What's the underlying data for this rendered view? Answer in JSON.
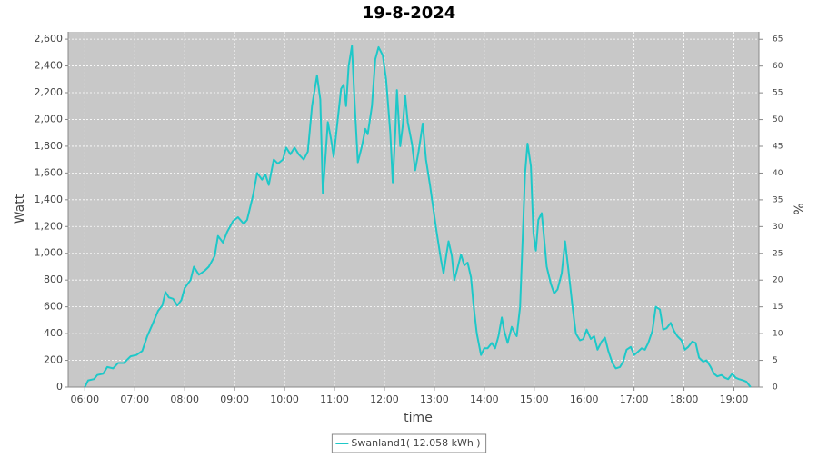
{
  "chart_data": {
    "type": "line",
    "title": "19-8-2024",
    "xlabel": "time",
    "ylabel": "Watt",
    "y2label": "%",
    "x": [
      360,
      364,
      371,
      375,
      382,
      387,
      394,
      400,
      407,
      415,
      422,
      429,
      435,
      442,
      448,
      453,
      457,
      461,
      466,
      471,
      476,
      480,
      487,
      491,
      497,
      504,
      509,
      516,
      520,
      526,
      531,
      538,
      544,
      551,
      555,
      562,
      567,
      573,
      577,
      581,
      587,
      592,
      598,
      602,
      607,
      612,
      617,
      623,
      628,
      633,
      639,
      643,
      646,
      649,
      652,
      656,
      659,
      663,
      668,
      671,
      674,
      677,
      681,
      684,
      688,
      693,
      697,
      700,
      705,
      709,
      713,
      718,
      722,
      727,
      730,
      733,
      735,
      739,
      742,
      745,
      748,
      753,
      757,
      761,
      766,
      770,
      775,
      779,
      783,
      788,
      791,
      794,
      797,
      801,
      804,
      807,
      812,
      816,
      820,
      824,
      827,
      831,
      836,
      840,
      844,
      849,
      853,
      857,
      861,
      864,
      868,
      873,
      876,
      879,
      883,
      886,
      889,
      892,
      896,
      899,
      902,
      905,
      909,
      912,
      915,
      920,
      924,
      928,
      933,
      937,
      941,
      946,
      950,
      955,
      959,
      963,
      968,
      972,
      976,
      981,
      985,
      989,
      994,
      998,
      1003,
      1007,
      1011,
      1016,
      1020,
      1024,
      1029,
      1033,
      1037,
      1042,
      1046,
      1051,
      1055,
      1059,
      1064,
      1068,
      1072,
      1077,
      1081,
      1085,
      1090,
      1094,
      1098,
      1103,
      1107,
      1112,
      1116,
      1120,
      1125,
      1129,
      1133,
      1138,
      1142,
      1146,
      1151,
      1155,
      1160
    ],
    "series": [
      {
        "name": "Swanland1( 12.058 kWh )",
        "color": "#1ec8c8",
        "values": [
          0,
          50,
          60,
          90,
          100,
          150,
          140,
          180,
          180,
          230,
          240,
          270,
          380,
          480,
          570,
          610,
          710,
          670,
          660,
          610,
          650,
          740,
          800,
          900,
          840,
          870,
          900,
          980,
          1130,
          1080,
          1160,
          1240,
          1270,
          1220,
          1250,
          1430,
          1600,
          1550,
          1590,
          1510,
          1700,
          1670,
          1700,
          1790,
          1740,
          1790,
          1740,
          1700,
          1760,
          2100,
          2330,
          2150,
          1450,
          1700,
          1980,
          1850,
          1720,
          1950,
          2230,
          2260,
          2100,
          2400,
          2550,
          2150,
          1680,
          1800,
          1930,
          1890,
          2100,
          2450,
          2540,
          2480,
          2300,
          1900,
          1530,
          1900,
          2220,
          1800,
          1950,
          2180,
          1980,
          1820,
          1620,
          1760,
          1970,
          1700,
          1500,
          1320,
          1150,
          950,
          850,
          970,
          1090,
          980,
          800,
          870,
          990,
          910,
          930,
          820,
          620,
          400,
          240,
          290,
          290,
          330,
          290,
          380,
          520,
          420,
          330,
          450,
          410,
          380,
          600,
          1100,
          1600,
          1820,
          1650,
          1150,
          1020,
          1250,
          1300,
          1100,
          900,
          770,
          700,
          730,
          850,
          1090,
          880,
          600,
          400,
          350,
          360,
          430,
          360,
          380,
          280,
          340,
          370,
          270,
          180,
          140,
          150,
          190,
          280,
          300,
          240,
          260,
          290,
          280,
          330,
          420,
          600,
          580,
          430,
          440,
          480,
          420,
          380,
          350,
          280,
          300,
          340,
          330,
          220,
          190,
          200,
          150,
          100,
          80,
          90,
          70,
          60,
          100,
          70,
          60,
          50,
          40,
          0
        ]
      }
    ],
    "xlim": [
      340,
      1170
    ],
    "xticks": [
      {
        "value": 360,
        "label": "06:00"
      },
      {
        "value": 420,
        "label": "07:00"
      },
      {
        "value": 480,
        "label": "08:00"
      },
      {
        "value": 540,
        "label": "09:00"
      },
      {
        "value": 600,
        "label": "10:00"
      },
      {
        "value": 660,
        "label": "11:00"
      },
      {
        "value": 720,
        "label": "12:00"
      },
      {
        "value": 780,
        "label": "13:00"
      },
      {
        "value": 840,
        "label": "14:00"
      },
      {
        "value": 900,
        "label": "15:00"
      },
      {
        "value": 960,
        "label": "16:00"
      },
      {
        "value": 1020,
        "label": "17:00"
      },
      {
        "value": 1080,
        "label": "18:00"
      },
      {
        "value": 1140,
        "label": "19:00"
      }
    ],
    "ylim": [
      0,
      2655
    ],
    "yticks": [
      0,
      200,
      400,
      600,
      800,
      {
        "value": 1000,
        "label": "1,000"
      },
      {
        "value": 1200,
        "label": "1,200"
      },
      {
        "value": 1400,
        "label": "1,400"
      },
      {
        "value": 1600,
        "label": "1,600"
      },
      {
        "value": 1800,
        "label": "1,800"
      },
      {
        "value": 2000,
        "label": "2,000"
      },
      {
        "value": 2200,
        "label": "2,200"
      },
      {
        "value": 2400,
        "label": "2,400"
      },
      {
        "value": 2600,
        "label": "2,600"
      }
    ],
    "y2lim": [
      0,
      66.4
    ],
    "y2ticks": [
      0,
      5,
      10,
      15,
      20,
      25,
      30,
      35,
      40,
      45,
      50,
      55,
      60,
      65
    ],
    "grid": true,
    "background": "#c8c8c8",
    "legend": "bottom"
  }
}
